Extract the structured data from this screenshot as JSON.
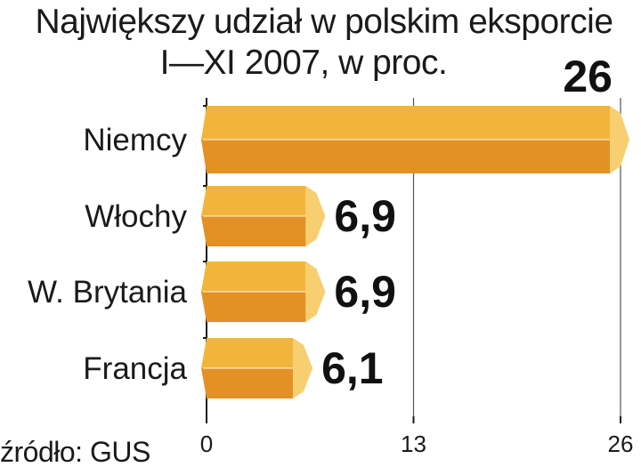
{
  "chart_data": {
    "type": "bar",
    "title": "Największy udział w polskim eksporcie",
    "subtitle": "I—XI 2007, w proc.",
    "categories": [
      "Niemcy",
      "Włochy",
      "W. Brytania",
      "Francja"
    ],
    "values": [
      26,
      6.9,
      6.9,
      6.1
    ],
    "value_labels": [
      "26",
      "6,9",
      "6,9",
      "6,1"
    ],
    "xlim": [
      0,
      26
    ],
    "xticks": [
      "0",
      "13",
      "26"
    ],
    "xtick_values": [
      0,
      13,
      26
    ],
    "grid": true,
    "orientation": "horizontal",
    "colors": {
      "bar_top": "#f2b53c",
      "bar_bottom": "#e39125",
      "bar_cap": "#f7cf70",
      "grid": "#555555"
    }
  },
  "source": "źródło: GUS"
}
